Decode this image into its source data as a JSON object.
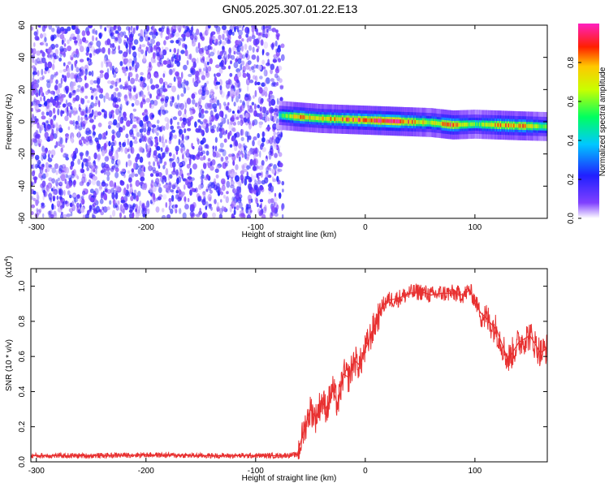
{
  "title": "GN05.2025.307.01.22.E13",
  "chart_data": [
    {
      "type": "heatmap",
      "title": "GN05.2025.307.01.22.E13",
      "xlabel": "Height of straight line (km)",
      "ylabel": "Frequency (Hz)",
      "xlim": [
        -305,
        166
      ],
      "ylim": [
        -60,
        60
      ],
      "x_ticks": [
        -300,
        -200,
        -100,
        0,
        100
      ],
      "y_ticks": [
        60,
        40,
        20,
        0,
        -20,
        -40,
        -60
      ],
      "colorbar": {
        "label": "Normalized spectral amplitude",
        "range": [
          0.0,
          1.0
        ],
        "ticks": [
          "0.0",
          "0.2",
          "0.4",
          "0.6",
          "0.8"
        ],
        "colormap": [
          "#ffffff",
          "#8040ff",
          "#2020ff",
          "#00c8ff",
          "#00ff60",
          "#c8ff00",
          "#ffc800",
          "#ff2000",
          "#ff20c0"
        ]
      },
      "regions": [
        {
          "name": "noise",
          "x_range": [
            -305,
            -78
          ],
          "freq_range": [
            -60,
            60
          ],
          "amplitude_range": [
            0.0,
            0.2
          ]
        },
        {
          "name": "signal",
          "x_range": [
            -78,
            166
          ],
          "freq_center": 0,
          "freq_halfwidth": 4,
          "amplitude_range": [
            0.2,
            1.0
          ]
        }
      ],
      "signal_ridge": {
        "x": [
          -78,
          -60,
          -40,
          -20,
          0,
          20,
          40,
          60,
          80,
          100,
          120,
          140,
          166
        ],
        "freq": [
          4,
          3,
          2,
          1.5,
          1,
          0.5,
          0,
          -0.5,
          -2,
          -1.5,
          -2,
          -2.5,
          -3
        ],
        "peak_amplitude": [
          0.4,
          0.75,
          0.7,
          0.8,
          0.9,
          1.0,
          0.8,
          0.6,
          0.85,
          0.5,
          0.75,
          0.8,
          0.5
        ]
      }
    },
    {
      "type": "line",
      "xlabel": "Height of straight line (km)",
      "ylabel": "SNR (10 * v/v)",
      "y_multiplier": "(x10",
      "y_multiplier_exp": "4",
      "y_multiplier_close": ")",
      "xlim": [
        -305,
        166
      ],
      "ylim": [
        0,
        1.1
      ],
      "x_ticks": [
        -300,
        -200,
        -100,
        0,
        100
      ],
      "y_ticks": [
        "0.0",
        "0.2",
        "0.4",
        "0.6",
        "0.8",
        "1.0"
      ],
      "color": "#e83030",
      "series": [
        {
          "x": [
            -305,
            -250,
            -200,
            -150,
            -100,
            -80,
            -62,
            -55,
            -50,
            -45,
            -40,
            -35,
            -30,
            -25,
            -20,
            -15,
            -10,
            -5,
            0,
            5,
            10,
            15,
            20,
            30,
            40,
            50,
            60,
            70,
            80,
            90,
            95,
            100,
            105,
            110,
            120,
            130,
            140,
            150,
            160,
            166
          ],
          "y": [
            0.035,
            0.035,
            0.04,
            0.035,
            0.035,
            0.035,
            0.04,
            0.2,
            0.3,
            0.25,
            0.35,
            0.3,
            0.42,
            0.32,
            0.5,
            0.48,
            0.58,
            0.55,
            0.64,
            0.72,
            0.8,
            0.88,
            0.92,
            0.93,
            0.96,
            0.97,
            0.95,
            0.96,
            0.96,
            0.95,
            0.98,
            0.92,
            0.85,
            0.82,
            0.75,
            0.58,
            0.68,
            0.72,
            0.62,
            0.65
          ]
        }
      ]
    }
  ]
}
